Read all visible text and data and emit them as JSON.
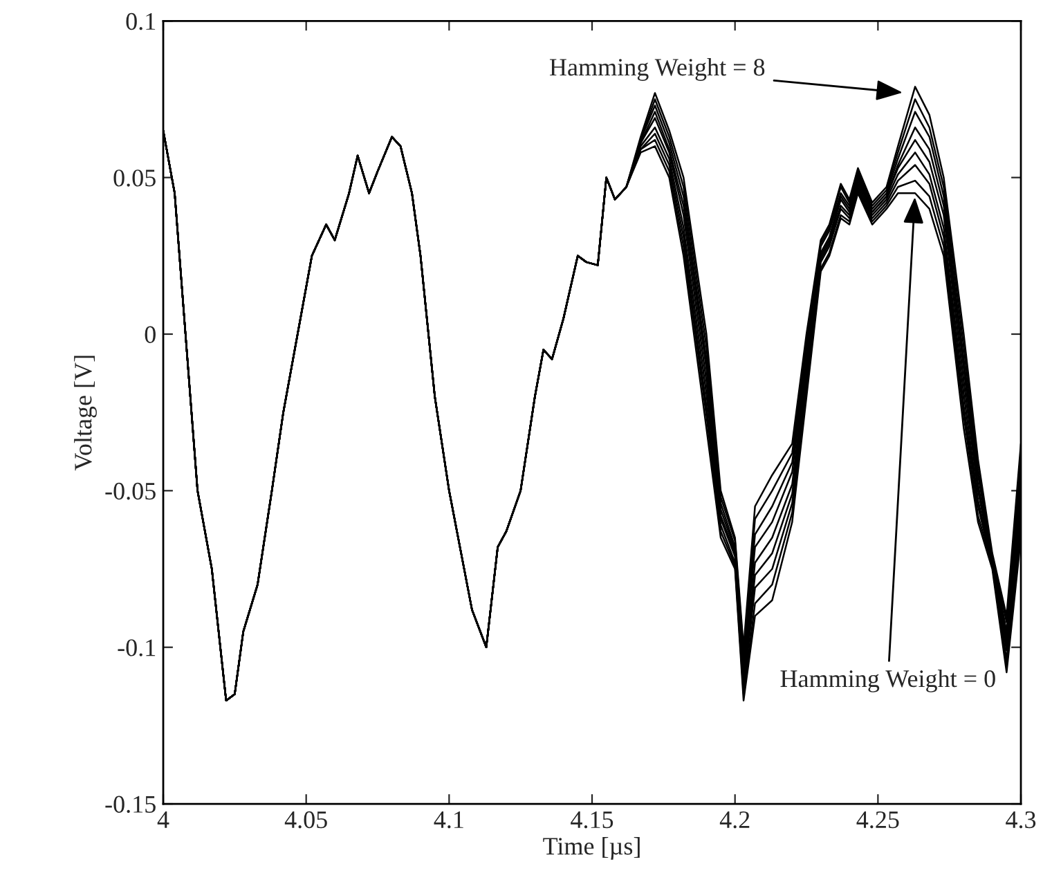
{
  "chart_data": {
    "type": "line",
    "xlabel": "Time [µs]",
    "ylabel": "Voltage [V]",
    "xlim": [
      4,
      4.3
    ],
    "xticks": [
      4,
      4.05,
      4.1,
      4.15,
      4.2,
      4.25,
      4.3
    ],
    "ylim": [
      -0.15,
      0.1
    ],
    "yticks": [
      -0.15,
      -0.1,
      -0.05,
      0,
      0.05,
      0.1
    ],
    "grid": false,
    "legend": false,
    "marker": "none",
    "line_style": "solid",
    "x": [
      4.0,
      4.004,
      4.012,
      4.017,
      4.022,
      4.025,
      4.028,
      4.033,
      4.038,
      4.042,
      4.047,
      4.052,
      4.057,
      4.06,
      4.065,
      4.068,
      4.072,
      4.075,
      4.08,
      4.083,
      4.087,
      4.09,
      4.095,
      4.1,
      4.108,
      4.113,
      4.117,
      4.12,
      4.125,
      4.13,
      4.133,
      4.136,
      4.14,
      4.145,
      4.148,
      4.152,
      4.155,
      4.158,
      4.162,
      4.167,
      4.172,
      4.177,
      4.182,
      4.19,
      4.195,
      4.2,
      4.203,
      4.207,
      4.213,
      4.22,
      4.225,
      4.23,
      4.233,
      4.237,
      4.24,
      4.243,
      4.248,
      4.253,
      4.257,
      4.263,
      4.268,
      4.273,
      4.28,
      4.285,
      4.29,
      4.295,
      4.3
    ],
    "series": [
      {
        "color": "#000000",
        "values": [
          0.065,
          0.045,
          -0.05,
          -0.075,
          -0.117,
          -0.115,
          -0.095,
          -0.08,
          -0.05,
          -0.025,
          0,
          0.025,
          0.035,
          0.03,
          0.045,
          0.057,
          0.045,
          0.052,
          0.063,
          0.06,
          0.045,
          0.025,
          -0.02,
          -0.05,
          -0.088,
          -0.1,
          -0.068,
          -0.063,
          -0.05,
          -0.02,
          -0.005,
          -0.008,
          0.005,
          0.025,
          0.023,
          0.022,
          0.05,
          0.043,
          0.047,
          0.058,
          0.06,
          0.05,
          0.025,
          -0.03,
          -0.065,
          -0.075,
          -0.117,
          -0.09,
          -0.085,
          -0.06,
          -0.02,
          0.02,
          0.025,
          0.037,
          0.035,
          0.045,
          0.035,
          0.04,
          0.045,
          0.045,
          0.04,
          0.025,
          -0.03,
          -0.06,
          -0.075,
          -0.108,
          -0.065
        ]
      },
      {
        "color": "#000000",
        "values": [
          0.065,
          0.045,
          -0.05,
          -0.075,
          -0.117,
          -0.115,
          -0.095,
          -0.08,
          -0.05,
          -0.025,
          0,
          0.025,
          0.035,
          0.03,
          0.045,
          0.057,
          0.045,
          0.052,
          0.063,
          0.06,
          0.045,
          0.025,
          -0.02,
          -0.05,
          -0.088,
          -0.1,
          -0.068,
          -0.063,
          -0.05,
          -0.02,
          -0.005,
          -0.008,
          0.005,
          0.025,
          0.023,
          0.022,
          0.05,
          0.043,
          0.047,
          0.059,
          0.062,
          0.052,
          0.028,
          -0.026,
          -0.063,
          -0.074,
          -0.115,
          -0.086,
          -0.08,
          -0.057,
          -0.018,
          0.021,
          0.026,
          0.038,
          0.036,
          0.046,
          0.036,
          0.041,
          0.047,
          0.049,
          0.044,
          0.028,
          -0.026,
          -0.058,
          -0.074,
          -0.106,
          -0.061
        ]
      },
      {
        "color": "#000000",
        "values": [
          0.065,
          0.045,
          -0.05,
          -0.075,
          -0.117,
          -0.115,
          -0.095,
          -0.08,
          -0.05,
          -0.025,
          0,
          0.025,
          0.035,
          0.03,
          0.045,
          0.057,
          0.045,
          0.052,
          0.063,
          0.06,
          0.045,
          0.025,
          -0.02,
          -0.05,
          -0.088,
          -0.1,
          -0.068,
          -0.063,
          -0.05,
          -0.02,
          -0.005,
          -0.008,
          0.005,
          0.025,
          0.023,
          0.022,
          0.05,
          0.043,
          0.047,
          0.059,
          0.064,
          0.054,
          0.031,
          -0.023,
          -0.061,
          -0.073,
          -0.113,
          -0.081,
          -0.075,
          -0.054,
          -0.015,
          0.023,
          0.028,
          0.04,
          0.037,
          0.047,
          0.037,
          0.042,
          0.049,
          0.054,
          0.048,
          0.031,
          -0.023,
          -0.055,
          -0.074,
          -0.104,
          -0.058
        ]
      },
      {
        "color": "#000000",
        "values": [
          0.065,
          0.045,
          -0.05,
          -0.075,
          -0.117,
          -0.115,
          -0.095,
          -0.08,
          -0.05,
          -0.025,
          0,
          0.025,
          0.035,
          0.03,
          0.045,
          0.057,
          0.045,
          0.052,
          0.063,
          0.06,
          0.045,
          0.025,
          -0.02,
          -0.05,
          -0.088,
          -0.1,
          -0.068,
          -0.063,
          -0.05,
          -0.02,
          -0.005,
          -0.008,
          0.005,
          0.025,
          0.023,
          0.022,
          0.05,
          0.043,
          0.047,
          0.06,
          0.066,
          0.056,
          0.034,
          -0.019,
          -0.059,
          -0.071,
          -0.111,
          -0.077,
          -0.07,
          -0.051,
          -0.013,
          0.024,
          0.029,
          0.041,
          0.038,
          0.048,
          0.038,
          0.043,
          0.051,
          0.058,
          0.051,
          0.034,
          -0.019,
          -0.053,
          -0.073,
          -0.101,
          -0.054
        ]
      },
      {
        "color": "#000000",
        "values": [
          0.065,
          0.045,
          -0.05,
          -0.075,
          -0.117,
          -0.115,
          -0.095,
          -0.08,
          -0.05,
          -0.025,
          0,
          0.025,
          0.035,
          0.03,
          0.045,
          0.057,
          0.045,
          0.052,
          0.063,
          0.06,
          0.045,
          0.025,
          -0.02,
          -0.05,
          -0.088,
          -0.1,
          -0.068,
          -0.063,
          -0.05,
          -0.02,
          -0.005,
          -0.008,
          0.005,
          0.025,
          0.023,
          0.022,
          0.05,
          0.043,
          0.047,
          0.061,
          0.069,
          0.058,
          0.038,
          -0.015,
          -0.058,
          -0.07,
          -0.109,
          -0.073,
          -0.065,
          -0.048,
          -0.01,
          0.025,
          0.03,
          0.043,
          0.039,
          0.049,
          0.039,
          0.044,
          0.053,
          0.062,
          0.055,
          0.038,
          -0.015,
          -0.05,
          -0.073,
          -0.099,
          -0.05
        ]
      },
      {
        "color": "#000000",
        "values": [
          0.065,
          0.045,
          -0.05,
          -0.075,
          -0.117,
          -0.115,
          -0.095,
          -0.08,
          -0.05,
          -0.025,
          0,
          0.025,
          0.035,
          0.03,
          0.045,
          0.057,
          0.045,
          0.052,
          0.063,
          0.06,
          0.045,
          0.025,
          -0.02,
          -0.05,
          -0.088,
          -0.1,
          -0.068,
          -0.063,
          -0.05,
          -0.02,
          -0.005,
          -0.008,
          0.005,
          0.025,
          0.023,
          0.022,
          0.05,
          0.043,
          0.047,
          0.061,
          0.071,
          0.059,
          0.041,
          -0.011,
          -0.056,
          -0.069,
          -0.106,
          -0.068,
          -0.06,
          -0.044,
          -0.008,
          0.026,
          0.031,
          0.044,
          0.04,
          0.05,
          0.039,
          0.044,
          0.054,
          0.066,
          0.059,
          0.041,
          -0.011,
          -0.048,
          -0.072,
          -0.097,
          -0.046
        ]
      },
      {
        "color": "#000000",
        "values": [
          0.065,
          0.045,
          -0.05,
          -0.075,
          -0.117,
          -0.115,
          -0.095,
          -0.08,
          -0.05,
          -0.025,
          0,
          0.025,
          0.035,
          0.03,
          0.045,
          0.057,
          0.045,
          0.052,
          0.063,
          0.06,
          0.045,
          0.025,
          -0.02,
          -0.05,
          -0.088,
          -0.1,
          -0.068,
          -0.063,
          -0.05,
          -0.02,
          -0.005,
          -0.008,
          0.005,
          0.025,
          0.023,
          0.022,
          0.05,
          0.043,
          0.047,
          0.062,
          0.073,
          0.061,
          0.044,
          -0.008,
          -0.054,
          -0.068,
          -0.104,
          -0.064,
          -0.055,
          -0.041,
          -0.005,
          0.028,
          0.033,
          0.045,
          0.041,
          0.051,
          0.04,
          0.045,
          0.056,
          0.071,
          0.063,
          0.044,
          -0.008,
          -0.045,
          -0.071,
          -0.095,
          -0.043
        ]
      },
      {
        "color": "#000000",
        "values": [
          0.065,
          0.045,
          -0.05,
          -0.075,
          -0.117,
          -0.115,
          -0.095,
          -0.08,
          -0.05,
          -0.025,
          0,
          0.025,
          0.035,
          0.03,
          0.045,
          0.057,
          0.045,
          0.052,
          0.063,
          0.06,
          0.045,
          0.025,
          -0.02,
          -0.05,
          -0.088,
          -0.1,
          -0.068,
          -0.063,
          -0.05,
          -0.02,
          -0.005,
          -0.008,
          0.005,
          0.025,
          0.023,
          0.022,
          0.05,
          0.043,
          0.047,
          0.062,
          0.075,
          0.063,
          0.047,
          -0.004,
          -0.052,
          -0.066,
          -0.102,
          -0.059,
          -0.05,
          -0.038,
          -0.003,
          0.029,
          0.034,
          0.047,
          0.042,
          0.052,
          0.041,
          0.046,
          0.058,
          0.075,
          0.066,
          0.047,
          -0.004,
          -0.043,
          -0.071,
          -0.092,
          -0.039
        ]
      },
      {
        "color": "#000000",
        "values": [
          0.065,
          0.045,
          -0.05,
          -0.075,
          -0.117,
          -0.115,
          -0.095,
          -0.08,
          -0.05,
          -0.025,
          0,
          0.025,
          0.035,
          0.03,
          0.045,
          0.057,
          0.045,
          0.052,
          0.063,
          0.06,
          0.045,
          0.025,
          -0.02,
          -0.05,
          -0.088,
          -0.1,
          -0.068,
          -0.063,
          -0.05,
          -0.02,
          -0.005,
          -0.008,
          0.005,
          0.025,
          0.023,
          0.022,
          0.05,
          0.043,
          0.047,
          0.063,
          0.077,
          0.065,
          0.05,
          0,
          -0.05,
          -0.065,
          -0.1,
          -0.055,
          -0.045,
          -0.035,
          0,
          0.03,
          0.035,
          0.048,
          0.043,
          0.053,
          0.042,
          0.047,
          0.06,
          0.079,
          0.07,
          0.05,
          0,
          -0.04,
          -0.07,
          -0.09,
          -0.035
        ]
      }
    ],
    "annotations": [
      {
        "text": "Hamming Weight = 8",
        "x": 4.26,
        "y": 0.077
      },
      {
        "text": "Hamming Weight = 0",
        "x": 4.263,
        "y": 0.045
      }
    ]
  }
}
